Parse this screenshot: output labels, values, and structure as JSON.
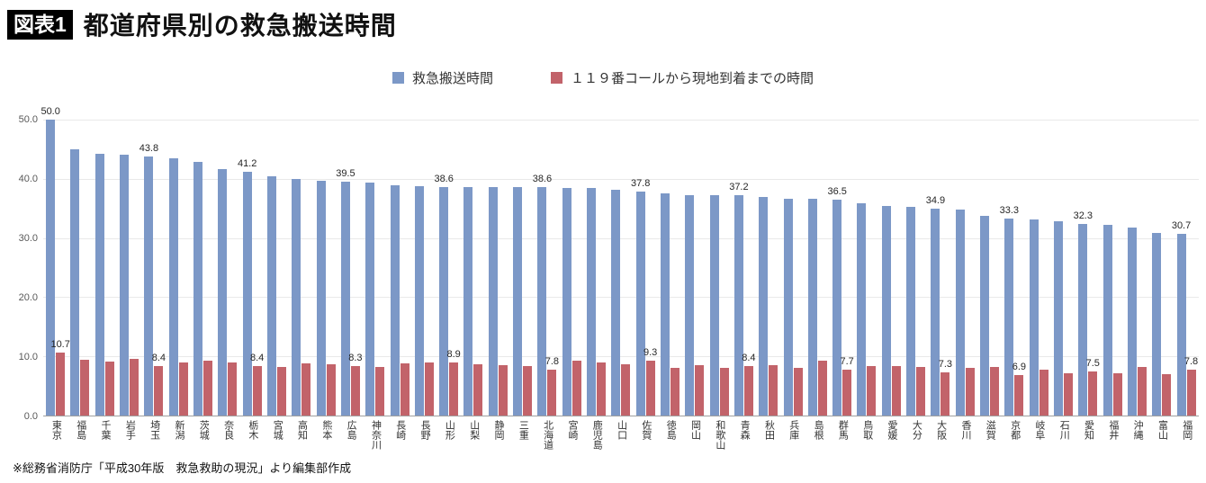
{
  "header": {
    "badge": "図表1",
    "title": "都道府県別の救急搬送時間"
  },
  "footer": {
    "note": "※総務省消防庁「平成30年版　救急救助の現況」より編集部作成"
  },
  "chart_data": {
    "type": "bar",
    "title": "都道府県別の救急搬送時間",
    "xlabel": "",
    "ylabel": "",
    "ylim": [
      0,
      50
    ],
    "yticks": [
      0,
      10,
      20,
      30,
      40,
      50
    ],
    "grid": true,
    "legend_position": "top",
    "categories": [
      "東京",
      "福島",
      "千葉",
      "岩手",
      "埼玉",
      "新潟",
      "茨城",
      "奈良",
      "栃木",
      "宮城",
      "高知",
      "熊本",
      "広島",
      "神奈川",
      "長崎",
      "長野",
      "山形",
      "山梨",
      "静岡",
      "三重",
      "北海道",
      "宮崎",
      "鹿児島",
      "山口",
      "佐賀",
      "徳島",
      "岡山",
      "和歌山",
      "青森",
      "秋田",
      "兵庫",
      "島根",
      "群馬",
      "鳥取",
      "愛媛",
      "大分",
      "大阪",
      "香川",
      "滋賀",
      "京都",
      "岐阜",
      "石川",
      "愛知",
      "福井",
      "沖縄",
      "富山",
      "福岡"
    ],
    "series": [
      {
        "name": "救急搬送時間",
        "color": "#7c98c7",
        "values": [
          50.0,
          45.0,
          44.2,
          44.0,
          43.8,
          43.4,
          42.9,
          41.6,
          41.2,
          40.5,
          40.0,
          39.6,
          39.5,
          39.4,
          38.9,
          38.8,
          38.6,
          38.6,
          38.6,
          38.6,
          38.6,
          38.5,
          38.4,
          38.1,
          37.8,
          37.5,
          37.3,
          37.2,
          37.2,
          36.9,
          36.7,
          36.6,
          36.5,
          35.9,
          35.4,
          35.3,
          34.9,
          34.8,
          33.7,
          33.3,
          33.1,
          32.8,
          32.3,
          32.2,
          31.8,
          30.8,
          30.7
        ]
      },
      {
        "name": "１１９番コールから現地到着までの時間",
        "color": "#c2636a",
        "values": [
          10.7,
          9.5,
          9.1,
          9.6,
          8.4,
          9.0,
          9.2,
          9.0,
          8.4,
          8.2,
          8.8,
          8.6,
          8.3,
          8.2,
          8.8,
          9.0,
          8.9,
          8.6,
          8.5,
          8.3,
          7.8,
          9.3,
          9.0,
          8.7,
          9.3,
          8.0,
          8.5,
          8.1,
          8.4,
          8.5,
          8.1,
          9.2,
          7.7,
          8.4,
          8.3,
          8.2,
          7.3,
          8.1,
          8.2,
          6.9,
          7.7,
          7.2,
          7.5,
          7.1,
          8.2,
          7.0,
          7.8
        ]
      }
    ],
    "labeled_categories": [
      "東京",
      "埼玉",
      "栃木",
      "広島",
      "山形",
      "北海道",
      "佐賀",
      "青森",
      "群馬",
      "大阪",
      "京都",
      "愛知",
      "福岡"
    ]
  }
}
